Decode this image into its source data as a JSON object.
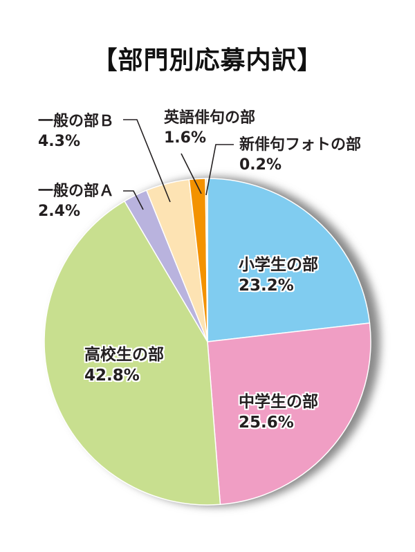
{
  "chart_data": {
    "type": "pie",
    "title": "【部門別応募内訳】",
    "start_angle": "12 o'clock, clockwise",
    "categories": [
      "小学生の部",
      "中学生の部",
      "高校生の部",
      "一般の部A",
      "一般の部B",
      "英語俳句の部",
      "新俳句フォトの部"
    ],
    "values": [
      23.2,
      25.6,
      42.8,
      2.4,
      4.3,
      1.6,
      0.2
    ],
    "value_labels": [
      "23.2%",
      "25.6%",
      "42.8%",
      "2.4%",
      "4.3%",
      "1.6%",
      "0.2%"
    ],
    "colors": [
      "#80CCF0",
      "#F09EC4",
      "#C8DF8F",
      "#B9B3DE",
      "#FDE3B3",
      "#F39200",
      "#F4E9C8"
    ],
    "unit": "%"
  },
  "labels": {
    "shogaku": {
      "name": "小学生の部",
      "pct": "23.2%"
    },
    "chugaku": {
      "name": "中学生の部",
      "pct": "25.6%"
    },
    "koko": {
      "name": "高校生の部",
      "pct": "42.8%"
    },
    "ippan_a": {
      "name": "一般の部Ａ",
      "pct": "2.4%"
    },
    "ippan_b": {
      "name": "一般の部Ｂ",
      "pct": "4.3%"
    },
    "eigo": {
      "name": "英語俳句の部",
      "pct": "1.6%"
    },
    "photo": {
      "name": "新俳句フォトの部",
      "pct": "0.2%"
    }
  },
  "style": {
    "shadow_color": "#8a8a8a",
    "leader_color": "#231f20",
    "separator_color": "#ffffff"
  }
}
